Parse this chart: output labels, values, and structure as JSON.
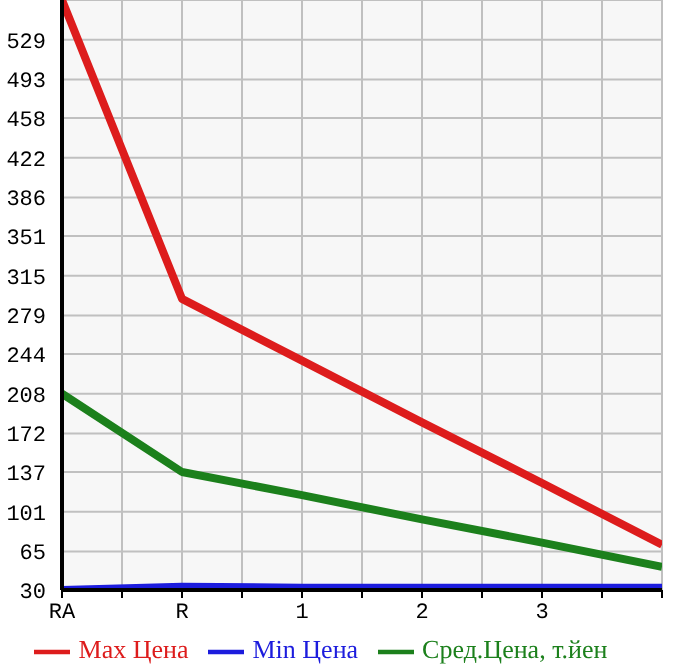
{
  "chart_data": {
    "type": "line",
    "categories": [
      "RA",
      "R",
      "1",
      "2",
      "3",
      null
    ],
    "series": [
      {
        "name": "Max Цена",
        "color": "#dd1c1c",
        "values": [
          565,
          294,
          238,
          182,
          127,
          71
        ]
      },
      {
        "name": "Min Цена",
        "color": "#1c1cdd",
        "values": [
          30,
          33,
          32,
          32,
          32,
          32
        ]
      },
      {
        "name": "Сред.Цена, т.йен",
        "color": "#1c801c",
        "values": [
          208,
          137,
          116,
          94,
          73,
          51
        ]
      }
    ],
    "ylim": [
      30,
      565
    ],
    "yticks": [
      30,
      65,
      101,
      137,
      172,
      208,
      244,
      279,
      315,
      351,
      386,
      422,
      458,
      493,
      529
    ],
    "grid": true,
    "legend": "bottom",
    "marker": "none",
    "line_style": "solid"
  }
}
